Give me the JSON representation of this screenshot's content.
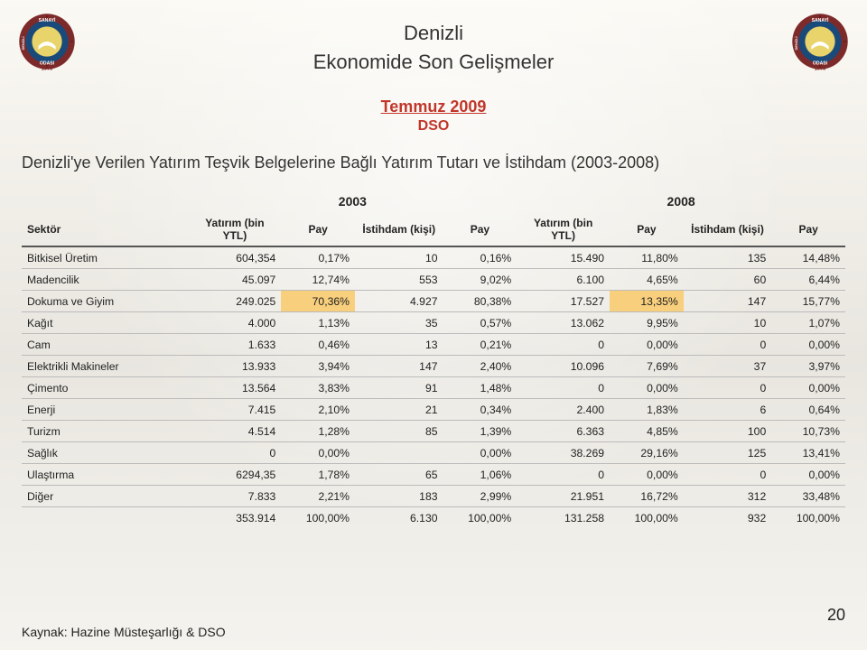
{
  "header": {
    "title1": "Denizli",
    "title2": "Ekonomide Son Gelişmeler",
    "monthYear": "Temmuz 2009",
    "org": "DSO"
  },
  "tableTitle": "Denizli'ye Verilen Yatırım Teşvik Belgelerine Bağlı Yatırım Tutarı ve İstihdam (2003-2008)",
  "groupHeaders": {
    "y2003": "2003",
    "y2008": "2008"
  },
  "columns": {
    "sector": "Sektör",
    "yatirim": "Yatırım (bin YTL)",
    "pay": "Pay",
    "istihdam": "İstihdam (kişi)"
  },
  "highlightColor": "#f8cf7c",
  "rows": [
    {
      "sector": "Bitkisel Üretim",
      "v": [
        "604,354",
        "0,17%",
        "10",
        "0,16%",
        "15.490",
        "11,80%",
        "135",
        "14,48%"
      ],
      "hilite": []
    },
    {
      "sector": "Madencilik",
      "v": [
        "45.097",
        "12,74%",
        "553",
        "9,02%",
        "6.100",
        "4,65%",
        "60",
        "6,44%"
      ],
      "hilite": []
    },
    {
      "sector": "Dokuma ve Giyim",
      "v": [
        "249.025",
        "70,36%",
        "4.927",
        "80,38%",
        "17.527",
        "13,35%",
        "147",
        "15,77%"
      ],
      "hilite": [
        1,
        5
      ]
    },
    {
      "sector": "Kağıt",
      "v": [
        "4.000",
        "1,13%",
        "35",
        "0,57%",
        "13.062",
        "9,95%",
        "10",
        "1,07%"
      ],
      "hilite": []
    },
    {
      "sector": "Cam",
      "v": [
        "1.633",
        "0,46%",
        "13",
        "0,21%",
        "0",
        "0,00%",
        "0",
        "0,00%"
      ],
      "hilite": []
    },
    {
      "sector": "Elektrikli Makineler",
      "v": [
        "13.933",
        "3,94%",
        "147",
        "2,40%",
        "10.096",
        "7,69%",
        "37",
        "3,97%"
      ],
      "hilite": []
    },
    {
      "sector": "Çimento",
      "v": [
        "13.564",
        "3,83%",
        "91",
        "1,48%",
        "0",
        "0,00%",
        "0",
        "0,00%"
      ],
      "hilite": []
    },
    {
      "sector": "Enerji",
      "v": [
        "7.415",
        "2,10%",
        "21",
        "0,34%",
        "2.400",
        "1,83%",
        "6",
        "0,64%"
      ],
      "hilite": []
    },
    {
      "sector": "Turizm",
      "v": [
        "4.514",
        "1,28%",
        "85",
        "1,39%",
        "6.363",
        "4,85%",
        "100",
        "10,73%"
      ],
      "hilite": []
    },
    {
      "sector": "Sağlık",
      "v": [
        "0",
        "0,00%",
        "",
        "0,00%",
        "38.269",
        "29,16%",
        "125",
        "13,41%"
      ],
      "hilite": []
    },
    {
      "sector": "Ulaştırma",
      "v": [
        "6294,35",
        "1,78%",
        "65",
        "1,06%",
        "0",
        "0,00%",
        "0",
        "0,00%"
      ],
      "hilite": []
    },
    {
      "sector": "Diğer",
      "v": [
        "7.833",
        "2,21%",
        "183",
        "2,99%",
        "21.951",
        "16,72%",
        "312",
        "33,48%"
      ],
      "hilite": []
    }
  ],
  "total": {
    "sector": "",
    "v": [
      "353.914",
      "100,00%",
      "6.130",
      "100,00%",
      "131.258",
      "100,00%",
      "932",
      "100,00%"
    ]
  },
  "source": "Kaynak: Hazine Müsteşarlığı & DSO",
  "pageNum": "20",
  "logo": {
    "top": "SANAYİ",
    "bottom": "ODASI",
    "left": "DENİZLİ",
    "year": "1973"
  }
}
